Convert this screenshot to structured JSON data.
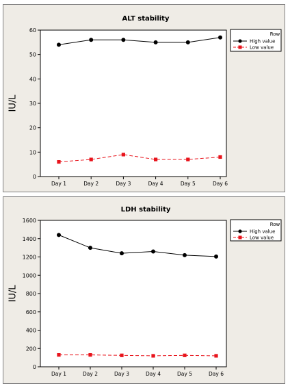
{
  "chart_data": [
    {
      "type": "line",
      "title": "ALT stability",
      "xlabel": "",
      "ylabel": "IU/L",
      "categories": [
        "Day 1",
        "Day 2",
        "Day 3",
        "Day 4",
        "Day 5",
        "Day 6"
      ],
      "ylim": [
        0,
        60
      ],
      "yticks": [
        0,
        10,
        20,
        30,
        40,
        50,
        60
      ],
      "legend_title": "Row",
      "legend_position": "top-right",
      "grid": false,
      "series": [
        {
          "name": "High value",
          "values": [
            54,
            56,
            56,
            55,
            55,
            57
          ],
          "color": "#000000",
          "marker": "circle",
          "line": "solid"
        },
        {
          "name": "Low value",
          "values": [
            6,
            7,
            9,
            7,
            7,
            8
          ],
          "color": "#e8141c",
          "marker": "square",
          "line": "dashed"
        }
      ]
    },
    {
      "type": "line",
      "title": "LDH stability",
      "xlabel": "",
      "ylabel": "IU/L",
      "categories": [
        "Day 1",
        "Day 2",
        "Day 3",
        "Day 4",
        "Day 5",
        "Day 6"
      ],
      "ylim": [
        0,
        1600
      ],
      "yticks": [
        0,
        200,
        400,
        600,
        800,
        1000,
        1200,
        1400,
        1600
      ],
      "legend_title": "Row",
      "legend_position": "top-right",
      "grid": false,
      "series": [
        {
          "name": "High value",
          "values": [
            1440,
            1300,
            1240,
            1260,
            1220,
            1205
          ],
          "color": "#000000",
          "marker": "circle",
          "line": "solid"
        },
        {
          "name": "Low value",
          "values": [
            130,
            130,
            125,
            120,
            125,
            120
          ],
          "color": "#e8141c",
          "marker": "square",
          "line": "dashed"
        }
      ]
    }
  ]
}
